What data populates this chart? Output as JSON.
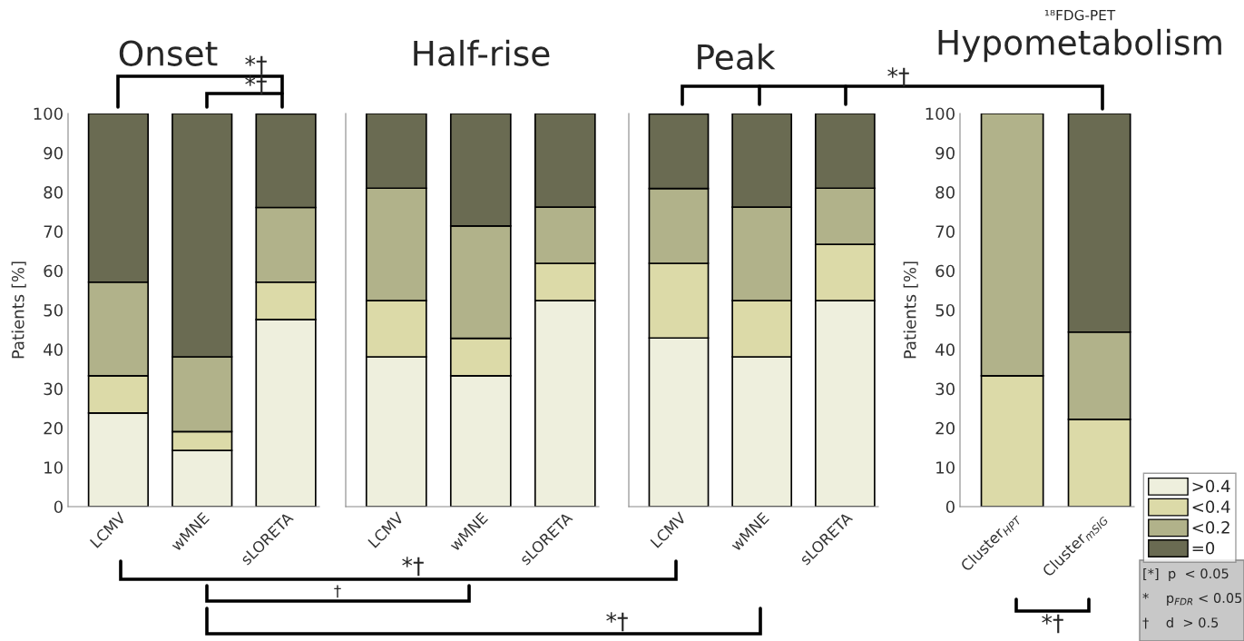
{
  "chart_data": [
    {
      "type": "bar",
      "title": "Onset",
      "ylabel": "Patients [%]",
      "stacked": true,
      "categories": [
        "LCMV",
        "wMNE",
        "sLORETA"
      ],
      "ylim": [
        0,
        100
      ],
      "yticks": [
        0,
        10,
        20,
        30,
        40,
        50,
        60,
        70,
        80,
        90,
        100
      ],
      "annotations": [
        "*†",
        "*†",
        "*†",
        "†",
        "*†"
      ],
      "series": [
        {
          "color": "#eeefdd",
          "values": [
            23.8,
            14.3,
            47.6
          ]
        },
        {
          "color": "#dcdaa8",
          "values": [
            9.5,
            4.8,
            9.5
          ]
        },
        {
          "color": "#b1b28a",
          "values": [
            23.8,
            19.0,
            19.0
          ]
        },
        {
          "color": "#6a6b52",
          "values": [
            42.9,
            61.9,
            23.8
          ]
        }
      ]
    },
    {
      "type": "bar",
      "title": "Half-rise",
      "stacked": true,
      "tick_labels": "x",
      "categories": [
        "LCMV",
        "wMNE",
        "sLORETA"
      ],
      "ylim": [
        0,
        100
      ],
      "yticks": [
        0,
        10,
        20,
        30,
        40,
        50,
        60,
        70,
        80,
        90,
        100
      ],
      "series": [
        {
          "color": "#eeefdd",
          "values": [
            38.1,
            33.3,
            52.4
          ]
        },
        {
          "color": "#dcdaa8",
          "values": [
            14.3,
            9.5,
            9.5
          ]
        },
        {
          "color": "#b1b28a",
          "values": [
            28.6,
            28.6,
            14.3
          ]
        },
        {
          "color": "#6a6b52",
          "values": [
            19.0,
            28.6,
            23.8
          ]
        }
      ]
    },
    {
      "type": "bar",
      "title": "Peak",
      "stacked": true,
      "tick_labels": "x",
      "categories": [
        "LCMV",
        "wMNE",
        "sLORETA"
      ],
      "ylim": [
        0,
        100
      ],
      "yticks": [
        0,
        10,
        20,
        30,
        40,
        50,
        60,
        70,
        80,
        90,
        100
      ],
      "annotations": [
        "*†"
      ],
      "series": [
        {
          "color": "#eeefdd",
          "values": [
            42.9,
            38.1,
            52.4
          ]
        },
        {
          "color": "#dcdaa8",
          "values": [
            19.0,
            14.3,
            14.3
          ]
        },
        {
          "color": "#b1b28a",
          "values": [
            19.0,
            23.8,
            14.3
          ]
        },
        {
          "color": "#6a6b52",
          "values": [
            19.0,
            23.8,
            19.0
          ]
        }
      ]
    },
    {
      "type": "bar",
      "title": "Hypometabolism",
      "subtitle": "¹⁸FDG-PET",
      "ylabel": "Patients [%]",
      "stacked": true,
      "categories": [
        "Cluster$_{HPT}$",
        "Cluster$_{mSIG}$"
      ],
      "ylim": [
        0,
        100
      ],
      "yticks": [
        0,
        10,
        20,
        30,
        40,
        50,
        60,
        70,
        80,
        90,
        100
      ],
      "legend": "bottom right",
      "annotations": [
        "*†",
        "[*]  p  < 0.05",
        "*    p$_{FDR}$ < 0.05",
        "†    d  > 0.5"
      ],
      "series": [
        {
          "name": ">0.4",
          "color": "#eeefdd",
          "values": [
            0,
            0
          ]
        },
        {
          "name": "<0.4",
          "color": "#dcdaa8",
          "values": [
            33.3,
            22.2
          ]
        },
        {
          "name": "<0.2",
          "color": "#b1b28a",
          "values": [
            66.7,
            22.2
          ]
        },
        {
          "name": "=0",
          "color": "#6a6b52",
          "values": [
            0,
            55.6
          ]
        }
      ]
    }
  ]
}
